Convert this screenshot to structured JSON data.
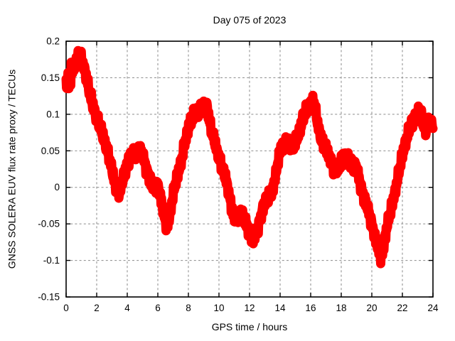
{
  "chart_data": {
    "type": "line",
    "title": "Day 075 of 2023",
    "xlabel": "GPS time / hours",
    "ylabel": "GNSS SOLERA EUV flux rate proxy / TECUs",
    "xlim": [
      0,
      24
    ],
    "ylim": [
      -0.15,
      0.2
    ],
    "grid": true,
    "legend": "none",
    "line_color": "#ff0000",
    "grid_color": "#8a8a8a",
    "axis_color": "#000000",
    "background_color": "#ffffff",
    "xtick_values": [
      0,
      2,
      4,
      6,
      8,
      10,
      12,
      14,
      16,
      18,
      20,
      22,
      24
    ],
    "xtick_labels": [
      "0",
      "2",
      "4",
      "6",
      "8",
      "10",
      "12",
      "14",
      "16",
      "18",
      "20",
      "22",
      "24"
    ],
    "ytick_values": [
      -0.15,
      -0.1,
      -0.05,
      0,
      0.05,
      0.1,
      0.15,
      0.2
    ],
    "ytick_labels": [
      "-0.15",
      "-0.1",
      "-0.05",
      "0",
      "0.05",
      "0.1",
      "0.15",
      "0.2"
    ],
    "series": [
      {
        "points": [
          [
            0,
            0.139
          ],
          [
            0.25,
            0.149
          ],
          [
            0.5,
            0.165
          ],
          [
            0.75,
            0.177
          ],
          [
            0.85,
            0.179
          ],
          [
            1,
            0.175
          ],
          [
            1.25,
            0.158
          ],
          [
            1.5,
            0.132
          ],
          [
            1.75,
            0.112
          ],
          [
            2,
            0.094
          ],
          [
            2.25,
            0.08
          ],
          [
            2.5,
            0.065
          ],
          [
            2.75,
            0.045
          ],
          [
            3,
            0.024
          ],
          [
            3.25,
            0.0
          ],
          [
            3.5,
            -0.008
          ],
          [
            3.75,
            0.014
          ],
          [
            4,
            0.033
          ],
          [
            4.25,
            0.043
          ],
          [
            4.5,
            0.048
          ],
          [
            4.75,
            0.052
          ],
          [
            5,
            0.046
          ],
          [
            5.25,
            0.026
          ],
          [
            5.5,
            0.01
          ],
          [
            5.75,
            0.002
          ],
          [
            6,
            0.004
          ],
          [
            6.25,
            -0.02
          ],
          [
            6.5,
            -0.048
          ],
          [
            6.6,
            -0.052
          ],
          [
            6.75,
            -0.042
          ],
          [
            7,
            -0.01
          ],
          [
            7.25,
            0.015
          ],
          [
            7.5,
            0.032
          ],
          [
            7.75,
            0.058
          ],
          [
            8,
            0.082
          ],
          [
            8.25,
            0.094
          ],
          [
            8.5,
            0.102
          ],
          [
            8.75,
            0.105
          ],
          [
            9,
            0.107
          ],
          [
            9.2,
            0.112
          ],
          [
            9.5,
            0.077
          ],
          [
            9.75,
            0.06
          ],
          [
            10,
            0.04
          ],
          [
            10.25,
            0.024
          ],
          [
            10.5,
            0.008
          ],
          [
            10.75,
            -0.02
          ],
          [
            11,
            -0.043
          ],
          [
            11.25,
            -0.038
          ],
          [
            11.5,
            -0.035
          ],
          [
            11.75,
            -0.048
          ],
          [
            12,
            -0.06
          ],
          [
            12.25,
            -0.071
          ],
          [
            12.5,
            -0.058
          ],
          [
            12.75,
            -0.038
          ],
          [
            13,
            -0.02
          ],
          [
            13.25,
            -0.01
          ],
          [
            13.5,
            -0.005
          ],
          [
            13.75,
            0.022
          ],
          [
            14,
            0.052
          ],
          [
            14.25,
            0.058
          ],
          [
            14.5,
            0.06
          ],
          [
            14.75,
            0.057
          ],
          [
            15,
            0.06
          ],
          [
            15.25,
            0.075
          ],
          [
            15.5,
            0.095
          ],
          [
            15.75,
            0.105
          ],
          [
            16,
            0.112
          ],
          [
            16.2,
            0.119
          ],
          [
            16.5,
            0.082
          ],
          [
            16.75,
            0.062
          ],
          [
            17,
            0.052
          ],
          [
            17.25,
            0.04
          ],
          [
            17.5,
            0.026
          ],
          [
            17.75,
            0.024
          ],
          [
            18,
            0.038
          ],
          [
            18.25,
            0.042
          ],
          [
            18.5,
            0.038
          ],
          [
            18.75,
            0.033
          ],
          [
            19,
            0.027
          ],
          [
            19.25,
            0.005
          ],
          [
            19.5,
            -0.014
          ],
          [
            19.75,
            -0.029
          ],
          [
            20,
            -0.05
          ],
          [
            20.25,
            -0.07
          ],
          [
            20.5,
            -0.09
          ],
          [
            20.6,
            -0.096
          ],
          [
            20.75,
            -0.084
          ],
          [
            21,
            -0.052
          ],
          [
            21.25,
            -0.03
          ],
          [
            21.5,
            -0.008
          ],
          [
            21.75,
            0.018
          ],
          [
            22,
            0.045
          ],
          [
            22.25,
            0.064
          ],
          [
            22.5,
            0.081
          ],
          [
            22.75,
            0.092
          ],
          [
            23,
            0.099
          ],
          [
            23.2,
            0.103
          ],
          [
            23.5,
            0.076
          ],
          [
            23.75,
            0.088
          ],
          [
            24,
            0.086
          ]
        ]
      }
    ]
  }
}
